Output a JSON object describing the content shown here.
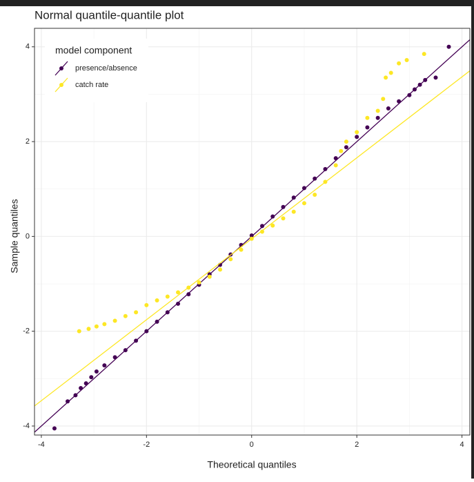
{
  "chart_data": {
    "type": "qq",
    "title": "Normal quantile-quantile plot",
    "xlabel": "Theoretical quantiles",
    "ylabel": "Sample quantiles",
    "xlim": [
      -4.13,
      4.15
    ],
    "ylim": [
      -4.19,
      4.39
    ],
    "xticks": [
      -4,
      -2,
      0,
      2,
      4
    ],
    "yticks": [
      -4,
      -2,
      0,
      2,
      4
    ],
    "xminor": [
      -3,
      -1,
      1,
      3
    ],
    "yminor": [
      -3,
      -1,
      1,
      3
    ],
    "grid": true,
    "legend_title": "model component",
    "legend_position": "top-left",
    "series": [
      {
        "name": "presence/absence",
        "color": "#440154",
        "line_slope": 1.0,
        "line_intercept": 0.0,
        "x": [
          -3.75,
          -3.5,
          -3.35,
          -3.25,
          -3.15,
          -3.05,
          -2.95,
          -2.8,
          -2.6,
          -2.4,
          -2.2,
          -2.0,
          -1.8,
          -1.6,
          -1.4,
          -1.2,
          -1.0,
          -0.8,
          -0.6,
          -0.4,
          -0.2,
          0,
          0.2,
          0.4,
          0.6,
          0.8,
          1.0,
          1.2,
          1.4,
          1.6,
          1.8,
          2.0,
          2.2,
          2.4,
          2.6,
          2.8,
          3.0,
          3.1,
          3.2,
          3.3,
          3.5,
          3.75
        ],
        "values": [
          -4.05,
          -3.48,
          -3.35,
          -3.2,
          -3.1,
          -2.97,
          -2.85,
          -2.72,
          -2.55,
          -2.4,
          -2.2,
          -2.0,
          -1.8,
          -1.6,
          -1.42,
          -1.22,
          -1.02,
          -0.8,
          -0.6,
          -0.38,
          -0.18,
          0.02,
          0.22,
          0.42,
          0.62,
          0.82,
          1.02,
          1.22,
          1.42,
          1.65,
          1.88,
          2.1,
          2.3,
          2.5,
          2.7,
          2.85,
          2.98,
          3.1,
          3.2,
          3.3,
          3.35,
          4.0
        ]
      },
      {
        "name": "catch rate",
        "color": "#FDE725",
        "line_slope": 0.854,
        "line_intercept": -0.05,
        "x": [
          -3.28,
          -3.1,
          -2.95,
          -2.8,
          -2.6,
          -2.4,
          -2.2,
          -2.0,
          -1.8,
          -1.6,
          -1.4,
          -1.2,
          -1.0,
          -0.8,
          -0.6,
          -0.4,
          -0.2,
          0,
          0.2,
          0.4,
          0.6,
          0.8,
          1.0,
          1.2,
          1.4,
          1.6,
          1.7,
          1.8,
          2.0,
          2.2,
          2.4,
          2.5,
          2.55,
          2.65,
          2.8,
          2.95,
          3.28
        ],
        "values": [
          -2.0,
          -1.95,
          -1.9,
          -1.85,
          -1.78,
          -1.68,
          -1.6,
          -1.45,
          -1.35,
          -1.27,
          -1.18,
          -1.08,
          -0.97,
          -0.85,
          -0.7,
          -0.48,
          -0.28,
          -0.05,
          0.1,
          0.23,
          0.38,
          0.52,
          0.7,
          0.88,
          1.15,
          1.5,
          1.8,
          2.0,
          2.2,
          2.5,
          2.65,
          2.9,
          3.35,
          3.45,
          3.65,
          3.72,
          3.85
        ]
      }
    ]
  }
}
